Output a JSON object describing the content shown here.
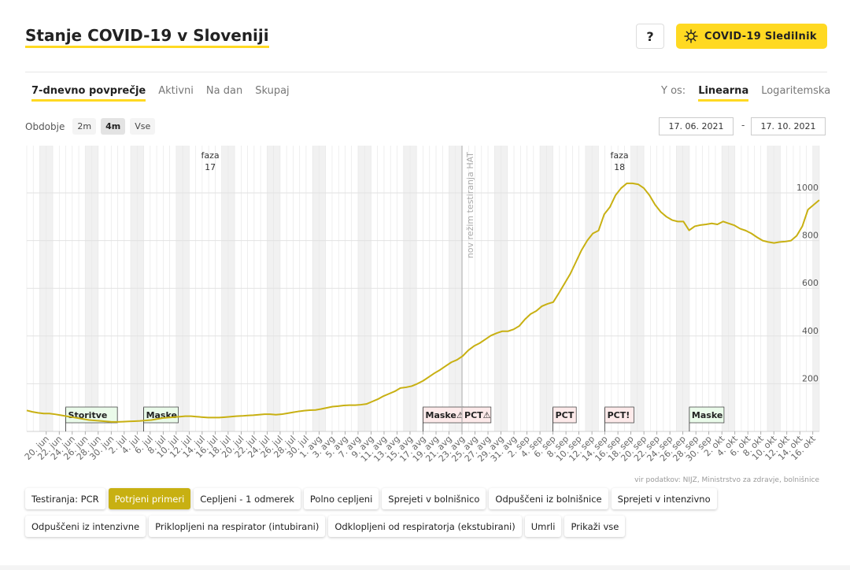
{
  "header": {
    "title": "Stanje COVID-19 v Sloveniji",
    "help_label": "?",
    "sledilnik_label": "COVID-19 Sledilnik"
  },
  "tabs": [
    {
      "label": "7-dnevno povprečje",
      "active": true
    },
    {
      "label": "Aktivni",
      "active": false
    },
    {
      "label": "Na dan",
      "active": false
    },
    {
      "label": "Skupaj",
      "active": false
    }
  ],
  "yaxis_control": {
    "label": "Y os:",
    "options": [
      {
        "label": "Linearna",
        "active": true
      },
      {
        "label": "Logaritemska",
        "active": false
      }
    ]
  },
  "period": {
    "label": "Obdobje",
    "options": [
      {
        "label": "2m",
        "active": false
      },
      {
        "label": "4m",
        "active": true
      },
      {
        "label": "Vse",
        "active": false
      }
    ],
    "from": "17. 06. 2021",
    "separator": "-",
    "to": "17. 10. 2021"
  },
  "source": "vir podatkov: NIJZ, Ministrstvo za zdravje, bolnišnice",
  "colors": {
    "line": "#c8b012",
    "accent": "#ffd922",
    "band_green": "#eafbea",
    "band_red": "#fdeaea"
  },
  "chart_data": {
    "type": "line",
    "x_start": "2021-06-17",
    "x_end": "2021-10-17",
    "ylim": [
      0,
      1040
    ],
    "yticks": [
      200,
      400,
      600,
      800,
      1000
    ],
    "xticks": [
      "20. jun",
      "22. jun",
      "24. jun",
      "26. jun",
      "28. jun",
      "30. jun",
      "2. jul",
      "4. jul",
      "6. jul",
      "8. jul",
      "10. jul",
      "12. jul",
      "14. jul",
      "16. jul",
      "18. jul",
      "20. jul",
      "22. jul",
      "24. jul",
      "26. jul",
      "28. jul",
      "30. jul",
      "1. avg",
      "3. avg",
      "5. avg",
      "7. avg",
      "9. avg",
      "11. avg",
      "13. avg",
      "15. avg",
      "17. avg",
      "19. avg",
      "21. avg",
      "23. avg",
      "25. avg",
      "27. avg",
      "29. avg",
      "31. avg",
      "2. sep",
      "4. sep",
      "6. sep",
      "8. sep",
      "10. sep",
      "12. sep",
      "14. sep",
      "16. sep",
      "18. sep",
      "20. sep",
      "22. sep",
      "24. sep",
      "26. sep",
      "28. sep",
      "30. sep",
      "2. okt",
      "4. okt",
      "6. okt",
      "8. okt",
      "10. okt",
      "12. okt",
      "14. okt",
      "16. okt"
    ],
    "series": [
      {
        "name": "Potrjeni primeri",
        "values": [
          88,
          82,
          78,
          75,
          75,
          72,
          68,
          64,
          60,
          56,
          52,
          48,
          46,
          44,
          42,
          40,
          40,
          41,
          42,
          43,
          44,
          46,
          48,
          52,
          56,
          58,
          60,
          62,
          64,
          64,
          62,
          60,
          58,
          58,
          58,
          60,
          62,
          64,
          65,
          67,
          68,
          70,
          72,
          72,
          70,
          72,
          76,
          80,
          84,
          87,
          89,
          90,
          94,
          99,
          104,
          106,
          109,
          110,
          110,
          112,
          115,
          125,
          135,
          148,
          158,
          168,
          182,
          185,
          190,
          200,
          212,
          228,
          244,
          258,
          274,
          290,
          300,
          316,
          340,
          358,
          370,
          386,
          402,
          412,
          420,
          420,
          428,
          442,
          470,
          492,
          505,
          525,
          535,
          542,
          580,
          620,
          660,
          710,
          760,
          800,
          830,
          842,
          910,
          940,
          990,
          1020,
          1040,
          1040,
          1036,
          1020,
          990,
          950,
          920,
          900,
          886,
          880,
          880,
          843,
          860,
          865,
          868,
          872,
          868,
          880,
          872,
          864,
          850,
          842,
          830,
          814,
          800,
          794,
          790,
          794,
          796,
          800,
          820,
          860,
          930,
          950,
          970
        ]
      }
    ],
    "phases": [
      {
        "label": "faza",
        "number": "17",
        "date": "2021-07-15"
      },
      {
        "label": "faza",
        "number": "18",
        "date": "2021-09-16"
      }
    ],
    "vline": {
      "label": "nov režim testiranja HAT",
      "date": "2021-08-23"
    },
    "events": [
      {
        "label": "Storitve",
        "date": "2021-06-23",
        "end": "2021-07-05",
        "kind": "relax"
      },
      {
        "label": "Maske",
        "date": "2021-07-05",
        "end": "2021-07-09",
        "kind": "relax"
      },
      {
        "label": "Maske⚠",
        "date": "2021-08-17",
        "end": "2021-08-23",
        "kind": "restrict"
      },
      {
        "label": "PCT⚠",
        "date": "2021-08-23",
        "end": "2021-08-27",
        "kind": "restrict"
      },
      {
        "label": "PCT",
        "date": "2021-09-06",
        "end": "2021-09-09",
        "kind": "restrict"
      },
      {
        "label": "PCT!",
        "date": "2021-09-14",
        "end": "2021-09-17",
        "kind": "restrict"
      },
      {
        "label": "Maske",
        "date": "2021-09-27",
        "end": "2021-10-01",
        "kind": "relax"
      }
    ]
  },
  "series_buttons": [
    {
      "label": "Testiranja: PCR",
      "active": false
    },
    {
      "label": "Potrjeni primeri",
      "active": true
    },
    {
      "label": "Cepljeni - 1 odmerek",
      "active": false
    },
    {
      "label": "Polno cepljeni",
      "active": false
    },
    {
      "label": "Sprejeti v bolnišnico",
      "active": false
    },
    {
      "label": "Odpuščeni iz bolnišnice",
      "active": false
    },
    {
      "label": "Sprejeti v intenzivno",
      "active": false
    },
    {
      "label": "Odpuščeni iz intenzivne",
      "active": false
    },
    {
      "label": "Priklopljeni na respirator (intubirani)",
      "active": false
    },
    {
      "label": "Odklopljeni od respiratorja (ekstubirani)",
      "active": false
    },
    {
      "label": "Umrli",
      "active": false
    },
    {
      "label": "Prikaži vse",
      "active": false
    }
  ]
}
